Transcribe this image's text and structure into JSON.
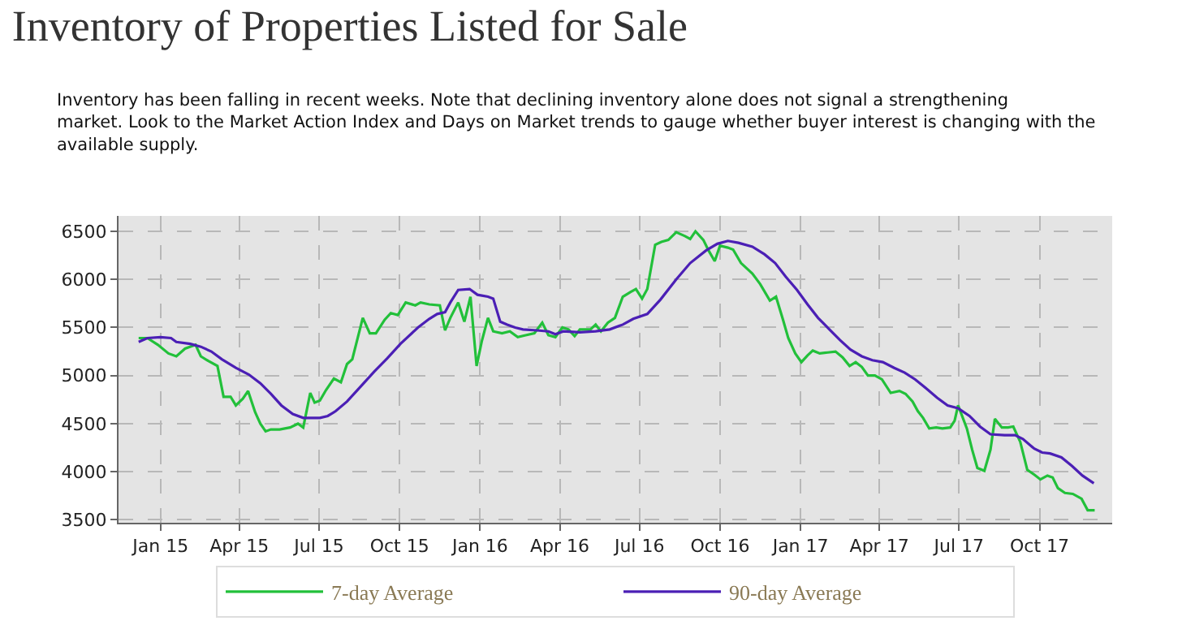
{
  "chart_data": {
    "type": "line",
    "title": "Inventory of Properties Listed for Sale",
    "subtitle": "Inventory has been falling in recent weeks. Note that declining inventory alone does not signal a strengthening market. Look to the Market Action Index and Days on Market trends to gauge whether buyer interest is changing with the available supply.",
    "series": [
      {
        "name": "7-day Average",
        "color": "#22c03a",
        "x": [
          "2014-12-07",
          "2014-12-17",
          "2014-12-29",
          "2015-01-10",
          "2015-01-19",
          "2015-01-29",
          "2015-02-10",
          "2015-02-16",
          "2015-02-25",
          "2015-03-07",
          "2015-03-14",
          "2015-03-22",
          "2015-03-28",
          "2015-04-05",
          "2015-04-11",
          "2015-04-19",
          "2015-04-25",
          "2015-05-01",
          "2015-05-07",
          "2015-05-17",
          "2015-05-29",
          "2015-06-07",
          "2015-06-13",
          "2015-06-21",
          "2015-06-26",
          "2015-07-02",
          "2015-07-09",
          "2015-07-18",
          "2015-07-26",
          "2015-08-02",
          "2015-08-08",
          "2015-08-20",
          "2015-08-28",
          "2015-09-04",
          "2015-09-14",
          "2015-09-21",
          "2015-09-29",
          "2015-10-08",
          "2015-10-19",
          "2015-10-25",
          "2015-11-04",
          "2015-11-16",
          "2015-11-22",
          "2015-11-28",
          "2015-12-07",
          "2015-12-14",
          "2015-12-21",
          "2015-12-28",
          "2016-01-03",
          "2016-01-10",
          "2016-01-16",
          "2016-01-26",
          "2016-02-04",
          "2016-02-13",
          "2016-02-22",
          "2016-03-03",
          "2016-03-12",
          "2016-03-19",
          "2016-03-27",
          "2016-04-04",
          "2016-04-11",
          "2016-04-18",
          "2016-04-24",
          "2016-05-06",
          "2016-05-12",
          "2016-05-18",
          "2016-05-26",
          "2016-06-03",
          "2016-06-12",
          "2016-06-21",
          "2016-06-27",
          "2016-07-04",
          "2016-07-10",
          "2016-07-19",
          "2016-07-26",
          "2016-08-03",
          "2016-08-12",
          "2016-08-22",
          "2016-08-28",
          "2016-09-03",
          "2016-09-12",
          "2016-09-18",
          "2016-09-25",
          "2016-10-01",
          "2016-10-10",
          "2016-10-16",
          "2016-10-25",
          "2016-11-07",
          "2016-11-16",
          "2016-11-27",
          "2016-12-04",
          "2016-12-12",
          "2016-12-18",
          "2016-12-26",
          "2017-01-02",
          "2017-01-09",
          "2017-01-15",
          "2017-01-23",
          "2017-02-01",
          "2017-02-10",
          "2017-02-18",
          "2017-02-26",
          "2017-03-05",
          "2017-03-12",
          "2017-03-19",
          "2017-03-27",
          "2017-04-04",
          "2017-04-14",
          "2017-04-24",
          "2017-05-01",
          "2017-05-09",
          "2017-05-15",
          "2017-05-21",
          "2017-05-28",
          "2017-06-05",
          "2017-06-12",
          "2017-06-21",
          "2017-06-26",
          "2017-06-30",
          "2017-07-10",
          "2017-07-16",
          "2017-07-22",
          "2017-07-30",
          "2017-08-06",
          "2017-08-11",
          "2017-08-19",
          "2017-08-26",
          "2017-09-01",
          "2017-09-09",
          "2017-09-17",
          "2017-09-25",
          "2017-10-02",
          "2017-10-10",
          "2017-10-16",
          "2017-10-22",
          "2017-10-30",
          "2017-11-08",
          "2017-11-18",
          "2017-11-25",
          "2017-12-03"
        ],
        "values": [
          5390,
          5390,
          5320,
          5230,
          5200,
          5280,
          5320,
          5200,
          5150,
          5100,
          4780,
          4780,
          4690,
          4760,
          4840,
          4620,
          4500,
          4420,
          4440,
          4440,
          4460,
          4500,
          4460,
          4820,
          4720,
          4740,
          4850,
          4970,
          4930,
          5120,
          5170,
          5600,
          5440,
          5440,
          5580,
          5650,
          5630,
          5760,
          5730,
          5760,
          5740,
          5730,
          5470,
          5600,
          5760,
          5560,
          5820,
          5100,
          5360,
          5600,
          5460,
          5440,
          5460,
          5400,
          5420,
          5440,
          5550,
          5420,
          5400,
          5500,
          5480,
          5410,
          5480,
          5480,
          5530,
          5460,
          5550,
          5600,
          5820,
          5870,
          5900,
          5800,
          5900,
          6360,
          6390,
          6410,
          6490,
          6450,
          6420,
          6500,
          6410,
          6300,
          6190,
          6350,
          6330,
          6310,
          6170,
          6060,
          5950,
          5780,
          5820,
          5580,
          5390,
          5230,
          5140,
          5210,
          5260,
          5230,
          5240,
          5250,
          5190,
          5100,
          5140,
          5090,
          5000,
          5000,
          4960,
          4820,
          4840,
          4810,
          4730,
          4630,
          4560,
          4450,
          4460,
          4450,
          4460,
          4530,
          4690,
          4450,
          4230,
          4040,
          4010,
          4230,
          4550,
          4460,
          4460,
          4470,
          4310,
          4020,
          3970,
          3920,
          3960,
          3940,
          3830,
          3780,
          3770,
          3720,
          3600,
          3600
        ]
      },
      {
        "name": "90-day Average",
        "color": "#4b1fb5",
        "x": [
          "2014-12-07",
          "2014-12-17",
          "2015-01-01",
          "2015-01-13",
          "2015-01-19",
          "2015-02-04",
          "2015-02-16",
          "2015-02-28",
          "2015-03-12",
          "2015-03-28",
          "2015-04-12",
          "2015-04-25",
          "2015-05-07",
          "2015-05-19",
          "2015-06-01",
          "2015-06-13",
          "2015-07-02",
          "2015-07-11",
          "2015-07-20",
          "2015-08-02",
          "2015-08-17",
          "2015-09-02",
          "2015-09-17",
          "2015-10-02",
          "2015-10-22",
          "2015-11-04",
          "2015-11-13",
          "2015-11-22",
          "2015-11-28",
          "2015-12-07",
          "2015-12-20",
          "2015-12-29",
          "2016-01-10",
          "2016-01-16",
          "2016-01-24",
          "2016-02-01",
          "2016-02-10",
          "2016-02-19",
          "2016-03-06",
          "2016-03-19",
          "2016-03-27",
          "2016-04-05",
          "2016-04-24",
          "2016-05-12",
          "2016-05-28",
          "2016-06-12",
          "2016-06-24",
          "2016-07-10",
          "2016-07-25",
          "2016-08-12",
          "2016-08-28",
          "2016-09-15",
          "2016-09-28",
          "2016-10-10",
          "2016-10-22",
          "2016-11-07",
          "2016-11-21",
          "2016-12-03",
          "2016-12-15",
          "2016-12-28",
          "2017-01-09",
          "2017-01-21",
          "2017-02-03",
          "2017-02-15",
          "2017-02-27",
          "2017-03-12",
          "2017-03-24",
          "2017-04-05",
          "2017-04-18",
          "2017-04-30",
          "2017-05-12",
          "2017-05-24",
          "2017-06-06",
          "2017-06-18",
          "2017-06-30",
          "2017-07-13",
          "2017-07-25",
          "2017-08-06",
          "2017-08-22",
          "2017-09-03",
          "2017-09-12",
          "2017-09-25",
          "2017-10-04",
          "2017-10-13",
          "2017-10-26",
          "2017-11-07",
          "2017-11-19",
          "2017-12-02"
        ],
        "values": [
          5350,
          5390,
          5400,
          5390,
          5350,
          5330,
          5300,
          5250,
          5170,
          5080,
          5010,
          4920,
          4810,
          4690,
          4600,
          4560,
          4560,
          4580,
          4630,
          4730,
          4880,
          5040,
          5180,
          5330,
          5500,
          5590,
          5640,
          5660,
          5760,
          5890,
          5900,
          5840,
          5820,
          5800,
          5560,
          5530,
          5500,
          5480,
          5470,
          5460,
          5430,
          5460,
          5450,
          5460,
          5480,
          5530,
          5590,
          5640,
          5790,
          6000,
          6170,
          6300,
          6370,
          6400,
          6380,
          6340,
          6260,
          6170,
          6030,
          5890,
          5740,
          5600,
          5480,
          5370,
          5270,
          5200,
          5160,
          5140,
          5080,
          5030,
          4960,
          4870,
          4770,
          4690,
          4660,
          4580,
          4470,
          4390,
          4380,
          4380,
          4340,
          4240,
          4200,
          4190,
          4150,
          4060,
          3960,
          3880
        ]
      }
    ],
    "xlim": [
      "2014-11-14",
      "2017-12-23"
    ],
    "xticks": [
      {
        "value": "2015-01-01",
        "label": "Jan 15"
      },
      {
        "value": "2015-04-01",
        "label": "Apr 15"
      },
      {
        "value": "2015-07-01",
        "label": "Jul 15"
      },
      {
        "value": "2015-10-01",
        "label": "Oct 15"
      },
      {
        "value": "2016-01-01",
        "label": "Jan 16"
      },
      {
        "value": "2016-04-01",
        "label": "Apr 16"
      },
      {
        "value": "2016-07-01",
        "label": "Jul 16"
      },
      {
        "value": "2016-10-01",
        "label": "Oct 16"
      },
      {
        "value": "2017-01-01",
        "label": "Jan 17"
      },
      {
        "value": "2017-04-01",
        "label": "Apr 17"
      },
      {
        "value": "2017-07-01",
        "label": "Jul 17"
      },
      {
        "value": "2017-10-01",
        "label": "Oct 17"
      }
    ],
    "ylim": [
      3470,
      6660
    ],
    "yticks": [
      3500,
      4000,
      4500,
      5000,
      5500,
      6000,
      6500
    ],
    "grid": true,
    "legend": "bottom",
    "marker": "none",
    "line_style": "solid"
  }
}
